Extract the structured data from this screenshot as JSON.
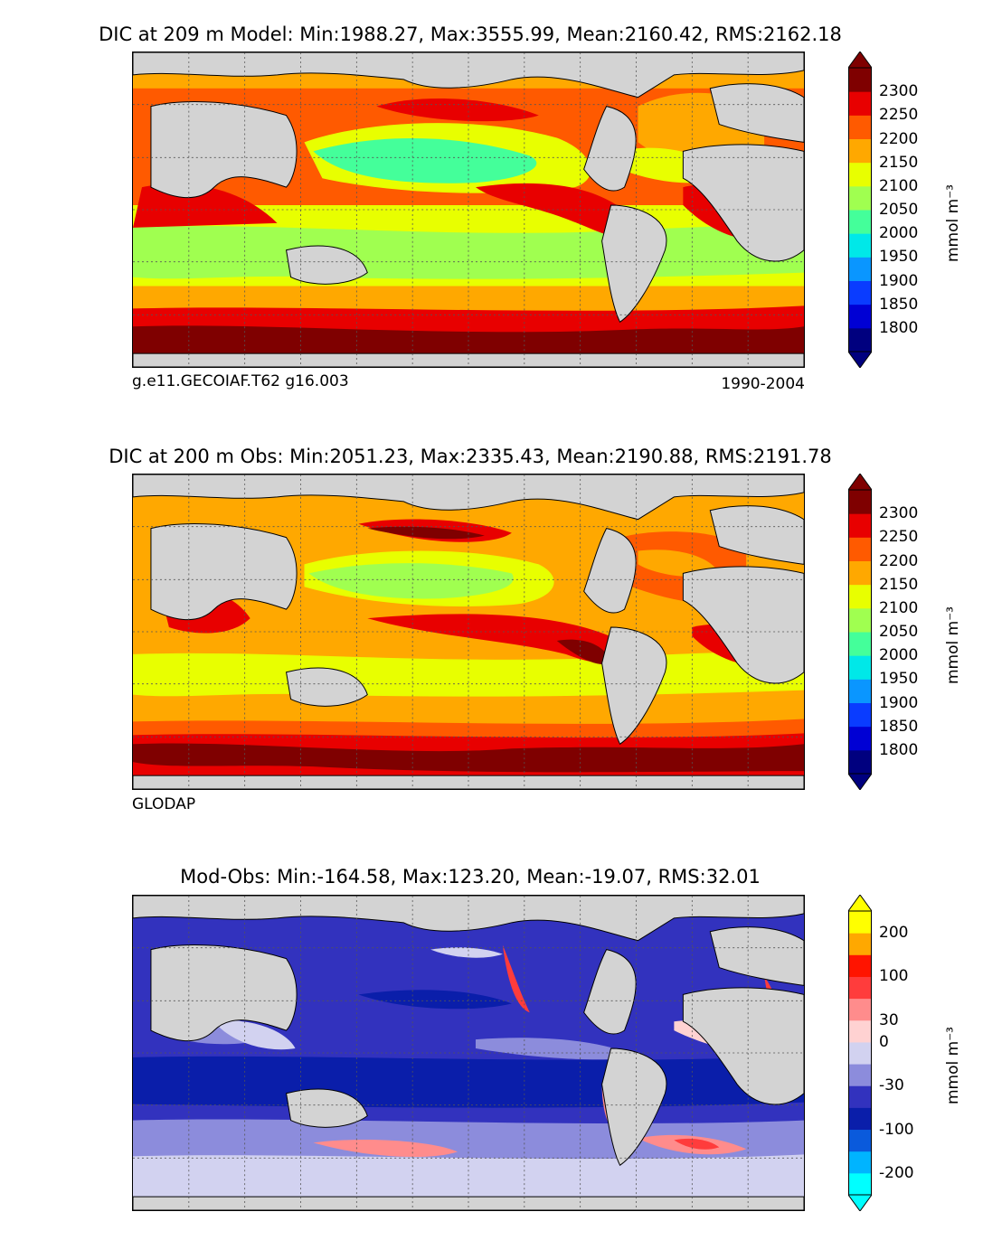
{
  "panels": [
    {
      "title": "DIC at 209 m Model: Min:1988.27, Max:3555.99, Mean:2160.42, RMS:2162.18",
      "subtitle_left": "g.e11.GECOIAF.T62 g16.003",
      "subtitle_right": "1990-2004",
      "colorbar": {
        "units": "mmol m⁻³",
        "ticks": [
          "1800",
          "1850",
          "1900",
          "1950",
          "2000",
          "2050",
          "2100",
          "2150",
          "2200",
          "2250",
          "2300"
        ],
        "colors": [
          "#00007f",
          "#0000d4",
          "#0a3cff",
          "#0a96ff",
          "#00e8e8",
          "#44ff9a",
          "#a0ff50",
          "#e8ff00",
          "#ffa800",
          "#ff5a00",
          "#e80000",
          "#7f0000"
        ]
      }
    },
    {
      "title": "DIC at 200 m Obs: Min:2051.23, Max:2335.43, Mean:2190.88, RMS:2191.78",
      "subtitle_left": "GLODAP",
      "subtitle_right": "",
      "colorbar": {
        "units": "mmol m⁻³",
        "ticks": [
          "1800",
          "1850",
          "1900",
          "1950",
          "2000",
          "2050",
          "2100",
          "2150",
          "2200",
          "2250",
          "2300"
        ],
        "colors": [
          "#00007f",
          "#0000d4",
          "#0a3cff",
          "#0a96ff",
          "#00e8e8",
          "#44ff9a",
          "#a0ff50",
          "#e8ff00",
          "#ffa800",
          "#ff5a00",
          "#e80000",
          "#7f0000"
        ]
      }
    },
    {
      "title": "Mod-Obs: Min:-164.58, Max:123.20, Mean:-19.07, RMS:32.01",
      "subtitle_left": "",
      "subtitle_right": "",
      "colorbar": {
        "units": "mmol m⁻³",
        "ticks": [
          "-200",
          "-100",
          "-30",
          "0",
          "30",
          "100",
          "200"
        ],
        "colors": [
          "#00ffff",
          "#00b4ff",
          "#0a5adc",
          "#0a1eaa",
          "#3232be",
          "#8c8cdc",
          "#d2d2f0",
          "#ffd2d2",
          "#ff8c8c",
          "#ff3c3c",
          "#ff1400",
          "#ffa800",
          "#ffff00"
        ]
      }
    }
  ],
  "colors": {
    "land": "#d3d3d3",
    "coast": "#000000",
    "grid": "#555555"
  }
}
